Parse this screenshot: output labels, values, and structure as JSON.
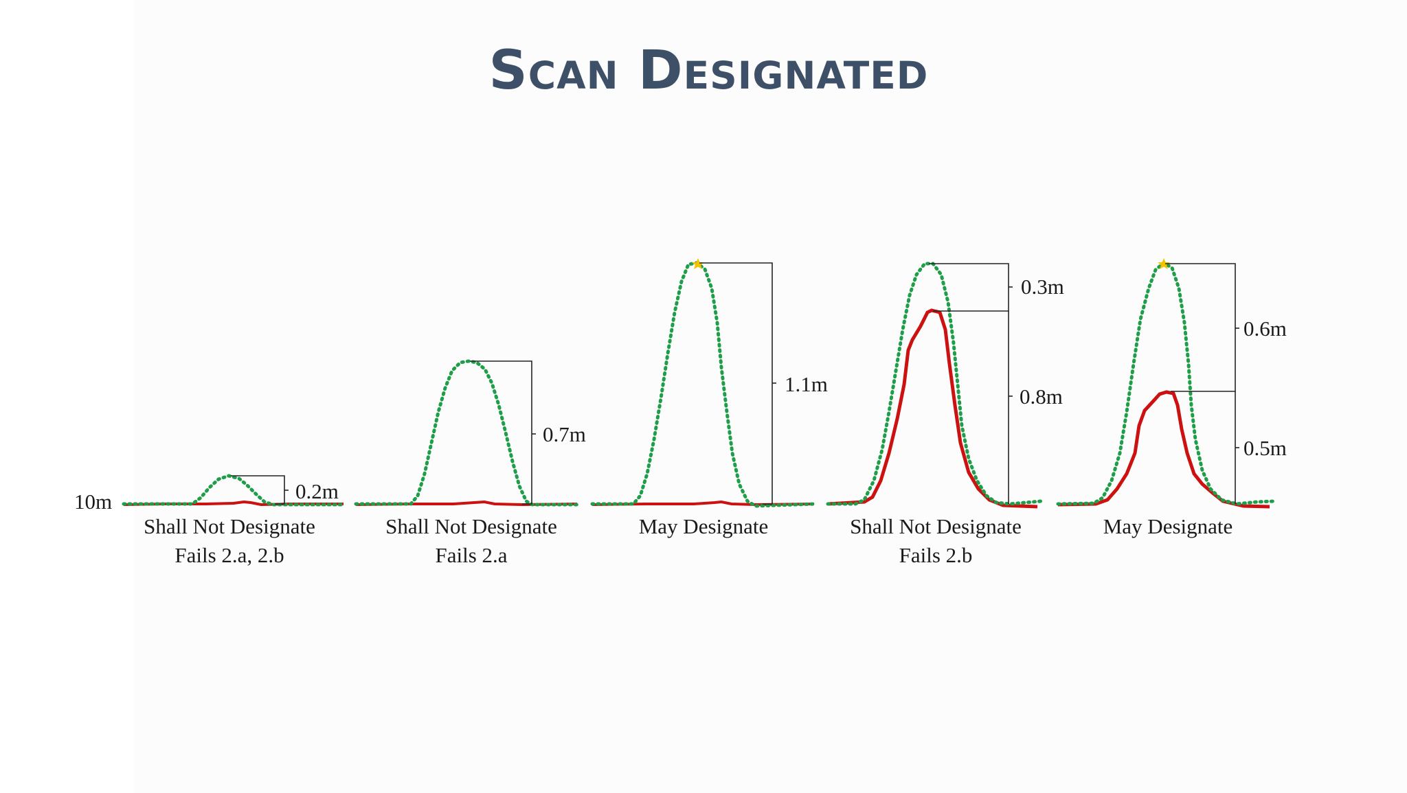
{
  "title": "Scan Designated",
  "colors": {
    "title": "#3d5068",
    "scan_dotted": "#1f9e4a",
    "ground_solid": "#cc1111",
    "bracket": "#222222",
    "peak_marker": "#f2c200"
  },
  "reference_label": "10m",
  "panels": [
    {
      "caption_line1": "Shall Not Designate",
      "caption_line2": "Fails 2.a, 2.b",
      "measurements": [
        "0.2m"
      ],
      "has_solid_peak": false
    },
    {
      "caption_line1": "Shall Not Designate",
      "caption_line2": "Fails 2.a",
      "measurements": [
        "0.7m"
      ],
      "has_solid_peak": false
    },
    {
      "caption_line1": "May Designate",
      "caption_line2": "",
      "measurements": [
        "1.1m"
      ],
      "has_solid_peak": false
    },
    {
      "caption_line1": "Shall Not Designate",
      "caption_line2": "Fails 2.b",
      "measurements": [
        "0.3m",
        "0.8m"
      ],
      "has_solid_peak": true
    },
    {
      "caption_line1": "May Designate",
      "caption_line2": "",
      "measurements": [
        "0.6m",
        "0.5m"
      ],
      "has_solid_peak": true
    }
  ]
}
